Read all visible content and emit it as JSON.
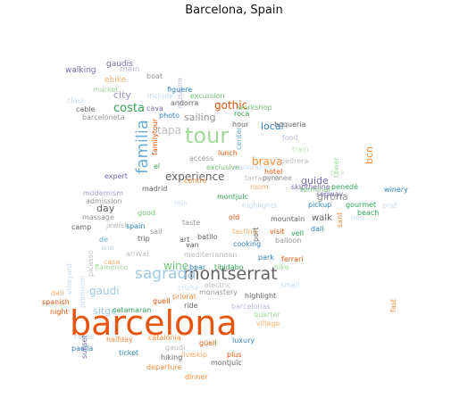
{
  "title": "Barcelona, Spain",
  "words": [
    {
      "text": "barcelona",
      "color": "#e6550d"
    },
    {
      "text": "tour",
      "color": "#a1d99b"
    },
    {
      "text": "montserrat",
      "color": "#636363"
    },
    {
      "text": "sagrada",
      "color": "#9ecae1"
    },
    {
      "text": "familia",
      "color": "#6baed6"
    },
    {
      "text": "costa",
      "color": "#31a354"
    },
    {
      "text": "gothic",
      "color": "#e6550d"
    },
    {
      "text": "brava",
      "color": "#fd8d3c"
    },
    {
      "text": "guide",
      "color": "#756bb1"
    },
    {
      "text": "experience",
      "color": "#636363"
    },
    {
      "text": "gaudi",
      "color": "#9ecae1"
    },
    {
      "text": "wine",
      "color": "#74c476"
    },
    {
      "text": "girona",
      "color": "#969696"
    },
    {
      "text": "sitge",
      "color": "#9ecae1"
    },
    {
      "text": "city",
      "color": "#9e9ac8"
    },
    {
      "text": "tapa",
      "color": "#bdbdbd"
    },
    {
      "text": "local",
      "color": "#3182bd"
    },
    {
      "text": "sailing",
      "color": "#969696"
    },
    {
      "text": "day",
      "color": "#636363"
    },
    {
      "text": "walk",
      "color": "#636363"
    },
    {
      "text": "bcn",
      "color": "#fd8d3c"
    },
    {
      "text": "gaudis",
      "color": "#756bb1"
    },
    {
      "text": "main",
      "color": "#bcbddc"
    },
    {
      "text": "walking",
      "color": "#756bb1"
    },
    {
      "text": "ebike",
      "color": "#fdae6b"
    },
    {
      "text": "boat",
      "color": "#969696"
    },
    {
      "text": "market",
      "color": "#a1d99b"
    },
    {
      "text": "museum",
      "color": "#bcbddc"
    },
    {
      "text": "figuere",
      "color": "#3182bd"
    },
    {
      "text": "class",
      "color": "#c6dbef"
    },
    {
      "text": "include",
      "color": "#c6dbef"
    },
    {
      "text": "excursion",
      "color": "#74c476"
    },
    {
      "text": "cable",
      "color": "#636363"
    },
    {
      "text": "andorra",
      "color": "#636363"
    },
    {
      "text": "barceloneta",
      "color": "#969696"
    },
    {
      "text": "cava",
      "color": "#756bb1"
    },
    {
      "text": "photo",
      "color": "#3182bd"
    },
    {
      "text": "roca",
      "color": "#31a354"
    },
    {
      "text": "workshop",
      "color": "#74c476"
    },
    {
      "text": "familytour",
      "color": "#e6550d"
    },
    {
      "text": "hour",
      "color": "#636363"
    },
    {
      "text": "boqueria",
      "color": "#636363"
    },
    {
      "text": "food",
      "color": "#bcbddc"
    },
    {
      "text": "center",
      "color": "#6baed6"
    },
    {
      "text": "train",
      "color": "#c7e9c0"
    },
    {
      "text": "lunch",
      "color": "#e6550d"
    },
    {
      "text": "access",
      "color": "#969696"
    },
    {
      "text": "pedrera",
      "color": "#bdbdbd"
    },
    {
      "text": "el",
      "color": "#31a354"
    },
    {
      "text": "exclusive",
      "color": "#74c476"
    },
    {
      "text": "panoramic",
      "color": "#c6dbef"
    },
    {
      "text": "hotel",
      "color": "#e6550d"
    },
    {
      "text": "tower",
      "color": "#a1d99b"
    },
    {
      "text": "pick",
      "color": "#c7e9c0"
    },
    {
      "text": "expert",
      "color": "#756bb1"
    },
    {
      "text": "centre",
      "color": "#fd8d3c"
    },
    {
      "text": "tarragona",
      "color": "#bdbdbd"
    },
    {
      "text": "pyrenee",
      "color": "#969696"
    },
    {
      "text": "skiptheline",
      "color": "#756bb1"
    },
    {
      "text": "penedé",
      "color": "#31a354"
    },
    {
      "text": "madrid",
      "color": "#636363"
    },
    {
      "text": "montjuic",
      "color": "#31a354"
    },
    {
      "text": "terminal",
      "color": "#74c476"
    },
    {
      "text": "modernism",
      "color": "#9e9ac8"
    },
    {
      "text": "admission",
      "color": "#969696"
    },
    {
      "text": "min",
      "color": "#c6dbef"
    },
    {
      "text": "highlights",
      "color": "#c6dbef"
    },
    {
      "text": "pickup",
      "color": "#3182bd"
    },
    {
      "text": "gourmet",
      "color": "#31a354"
    },
    {
      "text": "winery",
      "color": "#3182bd"
    },
    {
      "text": "massage",
      "color": "#969696"
    },
    {
      "text": "good",
      "color": "#74c476"
    },
    {
      "text": "room",
      "color": "#fdae6b"
    },
    {
      "text": "segway",
      "color": "#756bb1"
    },
    {
      "text": "beach",
      "color": "#31a354"
    },
    {
      "text": "prat",
      "color": "#c6dbef"
    },
    {
      "text": "camp",
      "color": "#636363"
    },
    {
      "text": "jewish",
      "color": "#bdbdbd"
    },
    {
      "text": "spain",
      "color": "#3182bd"
    },
    {
      "text": "taste",
      "color": "#969696"
    },
    {
      "text": "old",
      "color": "#e6550d"
    },
    {
      "text": "mountain",
      "color": "#636363"
    },
    {
      "text": "dali",
      "color": "#3182bd"
    },
    {
      "text": "sant",
      "color": "#fd8d3c"
    },
    {
      "text": "nou",
      "color": "#c6dbef"
    },
    {
      "text": "sail",
      "color": "#969696"
    },
    {
      "text": "tasting",
      "color": "#fdae6b"
    },
    {
      "text": "port",
      "color": "#636363"
    },
    {
      "text": "visit",
      "color": "#e6550d"
    },
    {
      "text": "vell",
      "color": "#31a354"
    },
    {
      "text": "de",
      "color": "#6baed6"
    },
    {
      "text": "trip",
      "color": "#636363"
    },
    {
      "text": "art",
      "color": "#636363"
    },
    {
      "text": "batllo",
      "color": "#636363"
    },
    {
      "text": "cooking",
      "color": "#3182bd"
    },
    {
      "text": "balloon",
      "color": "#969696"
    },
    {
      "text": "line",
      "color": "#c6dbef"
    },
    {
      "text": "van",
      "color": "#636363"
    },
    {
      "text": "park",
      "color": "#3182bd"
    },
    {
      "text": "ferrari",
      "color": "#e6550d"
    },
    {
      "text": "arrival",
      "color": "#bdbdbd"
    },
    {
      "text": "mediterranean",
      "color": "#bdbdbd"
    },
    {
      "text": "casa",
      "color": "#fdae6b"
    },
    {
      "text": "flamenco",
      "color": "#a1d99b"
    },
    {
      "text": "bear",
      "color": "#3182bd"
    },
    {
      "text": "tibidabo",
      "color": "#31a354"
    },
    {
      "text": "hike",
      "color": "#a1d99b"
    },
    {
      "text": "picasso",
      "color": "#bdbdbd"
    },
    {
      "text": "vineyard",
      "color": "#c6dbef"
    },
    {
      "text": "premium",
      "color": "#c6dbef"
    },
    {
      "text": "cruise",
      "color": "#c6dbef"
    },
    {
      "text": "electric",
      "color": "#bdbdbd"
    },
    {
      "text": "small",
      "color": "#c6dbef"
    },
    {
      "text": "dali",
      "color": "#fdae6b"
    },
    {
      "text": "priorat",
      "color": "#fd8d3c"
    },
    {
      "text": "monastery",
      "color": "#969696"
    },
    {
      "text": "highlight",
      "color": "#636363"
    },
    {
      "text": "spanish",
      "color": "#e6550d"
    },
    {
      "text": "guell",
      "color": "#e6550d"
    },
    {
      "text": "ride",
      "color": "#636363"
    },
    {
      "text": "barcelonas",
      "color": "#bcbddc"
    },
    {
      "text": "night",
      "color": "#e6550d"
    },
    {
      "text": "catamaran",
      "color": "#31a354"
    },
    {
      "text": "fast",
      "color": "#fd8d3c"
    },
    {
      "text": "quarter",
      "color": "#a1d99b"
    },
    {
      "text": "village",
      "color": "#fdae6b"
    },
    {
      "text": "tapas",
      "color": "#c6dbef"
    },
    {
      "text": "halfday",
      "color": "#fd8d3c"
    },
    {
      "text": "catalonia",
      "color": "#fd8d3c"
    },
    {
      "text": "paella",
      "color": "#3182bd"
    },
    {
      "text": "güell",
      "color": "#e6550d"
    },
    {
      "text": "luxury",
      "color": "#3182bd"
    },
    {
      "text": "gaudi",
      "color": "#bdbdbd"
    },
    {
      "text": "ticket",
      "color": "#3182bd"
    },
    {
      "text": "live",
      "color": "#fdae6b"
    },
    {
      "text": "skip",
      "color": "#fdae6b"
    },
    {
      "text": "plus",
      "color": "#e6550d"
    },
    {
      "text": "sunset",
      "color": "#756bb1"
    },
    {
      "text": "hiking",
      "color": "#636363"
    },
    {
      "text": "departure",
      "color": "#fd8d3c"
    },
    {
      "text": "montjuïc",
      "color": "#636363"
    },
    {
      "text": "dinner",
      "color": "#fd8d3c"
    }
  ]
}
